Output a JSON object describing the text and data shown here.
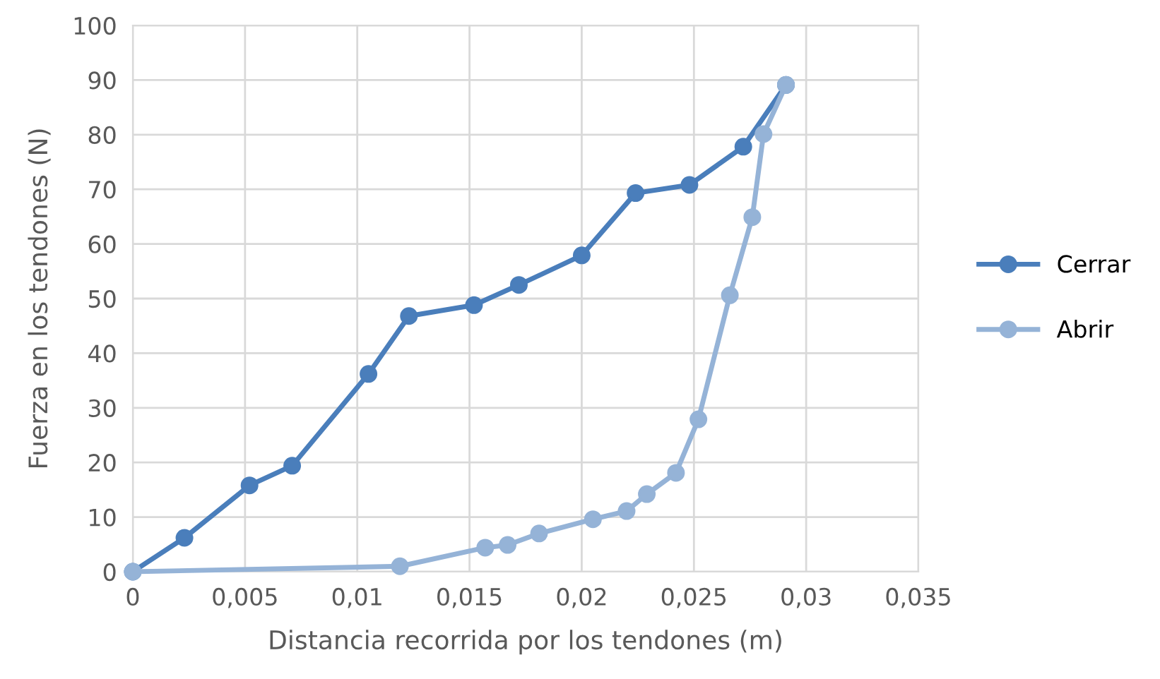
{
  "chart_data": {
    "type": "line",
    "xlabel": "Distancia recorrida por los tendones (m)",
    "ylabel": "Fuerza en los tendones (N)",
    "xlim": [
      0,
      0.035
    ],
    "xticks": [
      0,
      {
        "value": 0.005,
        "label": "0,005"
      },
      {
        "value": 0.01,
        "label": "0,01"
      },
      {
        "value": 0.015,
        "label": "0,015"
      },
      {
        "value": 0.02,
        "label": "0,02"
      },
      {
        "value": 0.025,
        "label": "0,025"
      },
      {
        "value": 0.03,
        "label": "0,03"
      },
      {
        "value": 0.035,
        "label": "0,035"
      }
    ],
    "ylim": [
      0,
      100
    ],
    "yticks": [
      0,
      10,
      20,
      30,
      40,
      50,
      60,
      70,
      80,
      90,
      100
    ],
    "grid": true,
    "legend": "right",
    "marker": "circle",
    "line_style": "solid",
    "series": [
      {
        "name": "Cerrar",
        "color": "#4a7ebb",
        "x": [
          0,
          0.0023,
          0.0052,
          0.0071,
          0.0105,
          0.0123,
          0.0152,
          0.0172,
          0.02,
          0.0224,
          0.0248,
          0.0272,
          0.0291
        ],
        "values": [
          0,
          6.2,
          15.8,
          19.4,
          36.2,
          46.8,
          48.8,
          52.5,
          57.9,
          69.3,
          70.8,
          77.8,
          89.1
        ]
      },
      {
        "name": "Abrir",
        "color": "#95b3d7",
        "x": [
          0,
          0.0119,
          0.0157,
          0.0167,
          0.0181,
          0.0205,
          0.022,
          0.0229,
          0.0242,
          0.0252,
          0.0266,
          0.0276,
          0.0281,
          0.0291
        ],
        "values": [
          0,
          1.0,
          4.4,
          4.9,
          7.0,
          9.6,
          11.1,
          14.2,
          18.1,
          27.9,
          50.6,
          64.9,
          80.1,
          89.1
        ]
      }
    ]
  }
}
